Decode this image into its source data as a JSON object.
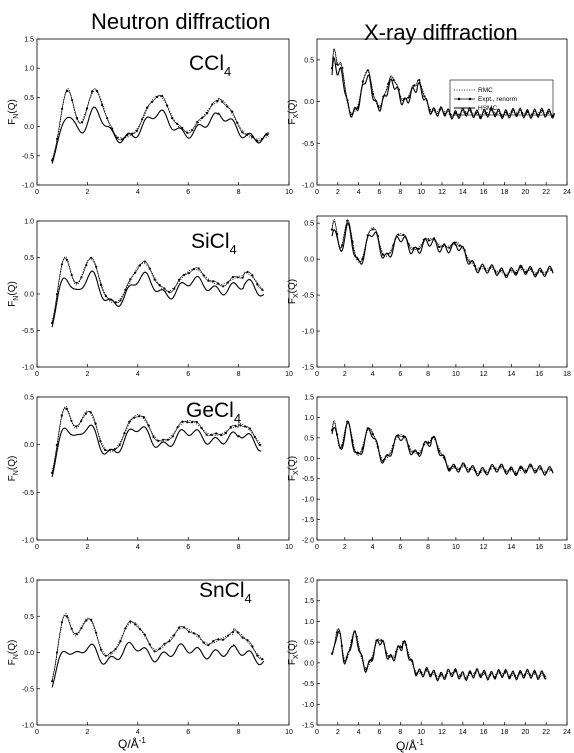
{
  "column_titles": [
    "Neutron diffraction",
    "X-ray diffraction"
  ],
  "compound_labels": {
    "ccl4": {
      "base": "CCl",
      "sub": "4"
    },
    "sicl4": {
      "base": "SiCl",
      "sub": "4"
    },
    "gecl4": {
      "base": "GeCl",
      "sub": "4"
    },
    "sncl4": {
      "base": "SnCl",
      "sub": "4"
    }
  },
  "legend": {
    "rmc": "RMC",
    "expt": "Expt., renorm",
    "hsmc": "HSMC"
  },
  "axis_labels": {
    "neutron_y": {
      "base": "F",
      "sub": "N",
      "tail": "(Q)"
    },
    "xray_y": {
      "base": "F",
      "sub": "X",
      "tail": "(Q)"
    },
    "x": {
      "base": "Q/Å",
      "sup": "-1"
    }
  },
  "colors": {
    "line": "#000000",
    "background": "#ffffff"
  },
  "chart_data": [
    {
      "id": "n-ccl4",
      "type": "line",
      "compound": "CCl4",
      "radiation": "neutron",
      "xlim": [
        0,
        10
      ],
      "ylim": [
        -1.0,
        1.5
      ],
      "xticks": [
        0,
        2,
        4,
        6,
        8,
        10
      ],
      "yticks": [
        -1.0,
        -0.5,
        0.0,
        0.5,
        1.0,
        1.5
      ],
      "peak_positions": [
        1.2,
        2.3,
        4.8,
        7.2
      ],
      "q_max": 9.2,
      "series": [
        {
          "name": "RMC",
          "style": "dotted",
          "amp": 1.0
        },
        {
          "name": "Expt., renorm",
          "style": "marker",
          "amp": 1.0
        },
        {
          "name": "HSMC",
          "style": "solid",
          "amp": 0.6
        }
      ]
    },
    {
      "id": "x-ccl4",
      "type": "line",
      "compound": "CCl4",
      "radiation": "xray",
      "xlim": [
        0,
        24
      ],
      "ylim": [
        -1.0,
        0.75
      ],
      "xticks": [
        0,
        2,
        4,
        6,
        8,
        10,
        12,
        14,
        16,
        18,
        20,
        22,
        24
      ],
      "yticks": [
        -1.0,
        -0.5,
        0.0,
        0.5
      ],
      "peak_positions": [
        1.6,
        2.3,
        4.8,
        7.2,
        9.6
      ],
      "q_max": 22.8,
      "series": [
        {
          "name": "RMC",
          "style": "dotted",
          "amp": 1.0
        },
        {
          "name": "Expt., renorm",
          "style": "marker",
          "amp": 1.0
        },
        {
          "name": "HSMC",
          "style": "solid",
          "amp": 0.85
        }
      ]
    },
    {
      "id": "n-sicl4",
      "type": "line",
      "compound": "SiCl4",
      "radiation": "neutron",
      "xlim": [
        0,
        10
      ],
      "ylim": [
        -1.0,
        1.0
      ],
      "xticks": [
        0,
        2,
        4,
        6,
        8,
        10
      ],
      "yticks": [
        -1.0,
        -0.5,
        0.0,
        0.5,
        1.0
      ],
      "peak_positions": [
        1.1,
        2.1,
        4.2,
        6.2,
        8.2
      ],
      "q_max": 9.0,
      "series": [
        {
          "name": "RMC",
          "style": "dotted",
          "amp": 1.0
        },
        {
          "name": "Expt., renorm",
          "style": "marker",
          "amp": 1.0
        },
        {
          "name": "HSMC",
          "style": "solid",
          "amp": 0.7
        }
      ]
    },
    {
      "id": "x-sicl4",
      "type": "line",
      "compound": "SiCl4",
      "radiation": "xray",
      "xlim": [
        0,
        18
      ],
      "ylim": [
        -1.5,
        0.6
      ],
      "xticks": [
        0,
        2,
        4,
        6,
        8,
        10,
        12,
        14,
        16,
        18
      ],
      "yticks": [
        -1.5,
        -1.0,
        -0.5,
        0.0,
        0.5
      ],
      "peak_positions": [
        1.2,
        2.2,
        4.0,
        6.0,
        8.0,
        10.0
      ],
      "q_max": 17.0,
      "series": [
        {
          "name": "RMC",
          "style": "dotted",
          "amp": 1.0
        },
        {
          "name": "Expt., renorm",
          "style": "marker",
          "amp": 1.0
        },
        {
          "name": "HSMC",
          "style": "solid",
          "amp": 0.9
        }
      ]
    },
    {
      "id": "n-gecl4",
      "type": "line",
      "compound": "GeCl4",
      "radiation": "neutron",
      "xlim": [
        0,
        10
      ],
      "ylim": [
        -1.0,
        0.5
      ],
      "xticks": [
        0,
        2,
        4,
        6,
        8,
        10
      ],
      "yticks": [
        -1.0,
        -0.5,
        0.0,
        0.5
      ],
      "peak_positions": [
        1.1,
        2.0,
        4.0,
        6.0,
        8.0
      ],
      "q_max": 8.9,
      "series": [
        {
          "name": "RMC",
          "style": "dotted",
          "amp": 1.0
        },
        {
          "name": "Expt., renorm",
          "style": "marker",
          "amp": 1.0
        },
        {
          "name": "HSMC",
          "style": "solid",
          "amp": 0.7
        }
      ]
    },
    {
      "id": "x-gecl4",
      "type": "line",
      "compound": "GeCl4",
      "radiation": "xray",
      "xlim": [
        0,
        18
      ],
      "ylim": [
        -2.0,
        1.5
      ],
      "xticks": [
        0,
        2,
        4,
        6,
        8,
        10,
        12,
        14,
        16,
        18
      ],
      "yticks": [
        -2.0,
        -1.5,
        -1.0,
        -0.5,
        0.0,
        0.5,
        1.0,
        1.5
      ],
      "peak_positions": [
        1.2,
        2.2,
        3.8,
        6.0,
        8.2
      ],
      "q_max": 17.0,
      "series": [
        {
          "name": "RMC",
          "style": "dotted",
          "amp": 1.0
        },
        {
          "name": "Expt., renorm",
          "style": "marker",
          "amp": 1.0
        },
        {
          "name": "HSMC",
          "style": "solid",
          "amp": 0.95
        }
      ]
    },
    {
      "id": "n-sncl4",
      "type": "line",
      "compound": "SnCl4",
      "radiation": "neutron",
      "xlim": [
        0,
        10
      ],
      "ylim": [
        -1.0,
        1.0
      ],
      "xticks": [
        0,
        2,
        4,
        6,
        8,
        10
      ],
      "yticks": [
        -1.0,
        -0.5,
        0.0,
        0.5,
        1.0
      ],
      "peak_positions": [
        1.1,
        2.0,
        3.8,
        5.8,
        7.8
      ],
      "q_max": 9.0,
      "series": [
        {
          "name": "RMC",
          "style": "dotted",
          "amp": 1.0
        },
        {
          "name": "Expt., renorm",
          "style": "marker",
          "amp": 1.0
        },
        {
          "name": "HSMC",
          "style": "solid",
          "amp": 0.45
        }
      ]
    },
    {
      "id": "x-sncl4",
      "type": "line",
      "compound": "SnCl4",
      "radiation": "xray",
      "xlim": [
        0,
        24
      ],
      "ylim": [
        -1.5,
        2.0
      ],
      "xticks": [
        0,
        2,
        4,
        6,
        8,
        10,
        12,
        14,
        16,
        18,
        20,
        22,
        24
      ],
      "yticks": [
        -1.5,
        -1.0,
        -0.5,
        0.0,
        0.5,
        1.0,
        1.5,
        2.0
      ],
      "peak_positions": [
        1.0,
        2.0,
        3.6,
        6.0,
        8.2
      ],
      "q_max": 22.0,
      "series": [
        {
          "name": "RMC",
          "style": "dotted",
          "amp": 1.0
        },
        {
          "name": "Expt., renorm",
          "style": "marker",
          "amp": 1.0
        },
        {
          "name": "HSMC",
          "style": "solid",
          "amp": 0.95
        }
      ]
    }
  ]
}
